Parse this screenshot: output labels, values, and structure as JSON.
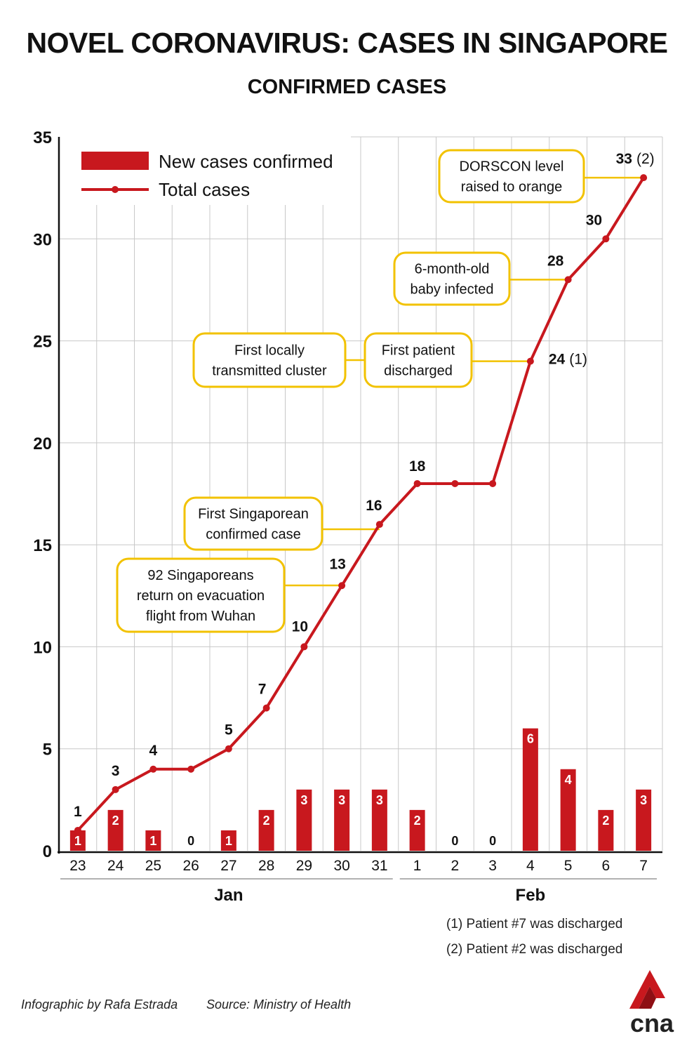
{
  "header": {
    "title": "NOVEL CORONAVIRUS: CASES IN SINGAPORE",
    "subtitle": "CONFIRMED CASES"
  },
  "colors": {
    "accent": "#c8181e",
    "callout_border": "#f2c200",
    "grid": "#c8c8c8"
  },
  "chart_data": {
    "type": "bar+line",
    "categories": [
      "23",
      "24",
      "25",
      "26",
      "27",
      "28",
      "29",
      "30",
      "31",
      "1",
      "2",
      "3",
      "4",
      "5",
      "6",
      "7"
    ],
    "month_groups": [
      {
        "label": "Jan",
        "from": 0,
        "to": 8
      },
      {
        "label": "Feb",
        "from": 9,
        "to": 15
      }
    ],
    "series": [
      {
        "name": "New cases confirmed",
        "type": "bar",
        "values": [
          1,
          2,
          1,
          0,
          1,
          2,
          3,
          3,
          3,
          2,
          0,
          0,
          6,
          4,
          2,
          3
        ]
      },
      {
        "name": "Total cases",
        "type": "line",
        "values": [
          1,
          3,
          4,
          4,
          5,
          7,
          10,
          13,
          16,
          18,
          18,
          18,
          24,
          28,
          30,
          33
        ]
      }
    ],
    "point_labels": [
      {
        "index": 0,
        "text": "1"
      },
      {
        "index": 1,
        "text": "3"
      },
      {
        "index": 2,
        "text": "4"
      },
      {
        "index": 4,
        "text": "5"
      },
      {
        "index": 5,
        "text": "7"
      },
      {
        "index": 6,
        "text": "10"
      },
      {
        "index": 7,
        "text": "13"
      },
      {
        "index": 8,
        "text": "16"
      },
      {
        "index": 9,
        "text": "18"
      },
      {
        "index": 12,
        "text": "24",
        "note": "(1)"
      },
      {
        "index": 13,
        "text": "28"
      },
      {
        "index": 14,
        "text": "30"
      },
      {
        "index": 15,
        "text": "33",
        "note": "(2)"
      }
    ],
    "yticks": [
      0,
      5,
      10,
      15,
      20,
      25,
      30,
      35
    ],
    "ylim": [
      0,
      35
    ],
    "grid": true,
    "legend_position": "top-left",
    "annotations": [
      {
        "lines": [
          "DORSCON level",
          "raised to orange"
        ],
        "index": 15
      },
      {
        "lines": [
          "6-month-old",
          "baby infected"
        ],
        "index": 13
      },
      {
        "lines": [
          "First patient",
          "discharged"
        ],
        "index": 12
      },
      {
        "lines": [
          "First locally",
          "transmitted cluster"
        ],
        "index": null
      },
      {
        "lines": [
          "First Singaporean",
          "confirmed case"
        ],
        "index": 8
      },
      {
        "lines": [
          "92 Singaporeans",
          "return on evacuation",
          "flight from Wuhan"
        ],
        "index": 7
      }
    ],
    "footnotes": [
      "(1) Patient #7 was discharged",
      "(2) Patient #2 was discharged"
    ]
  },
  "footer": {
    "credit": "Infographic by Rafa Estrada",
    "source": "Source: Ministry of Health"
  },
  "logo": {
    "text": "cna"
  }
}
